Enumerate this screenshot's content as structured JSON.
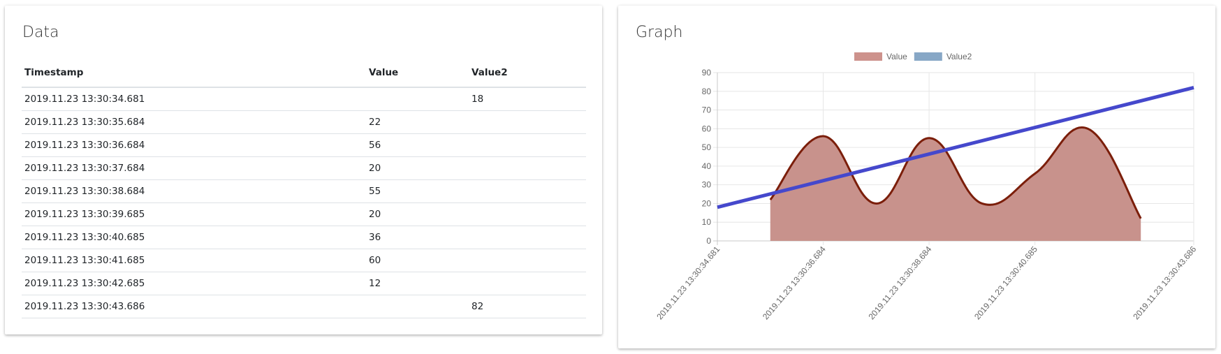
{
  "data_card": {
    "title": "Data",
    "columns": [
      "Timestamp",
      "Value",
      "Value2"
    ],
    "rows": [
      {
        "timestamp": "2019.11.23 13:30:34.681",
        "value": "",
        "value2": "18"
      },
      {
        "timestamp": "2019.11.23 13:30:35.684",
        "value": "22",
        "value2": ""
      },
      {
        "timestamp": "2019.11.23 13:30:36.684",
        "value": "56",
        "value2": ""
      },
      {
        "timestamp": "2019.11.23 13:30:37.684",
        "value": "20",
        "value2": ""
      },
      {
        "timestamp": "2019.11.23 13:30:38.684",
        "value": "55",
        "value2": ""
      },
      {
        "timestamp": "2019.11.23 13:30:39.685",
        "value": "20",
        "value2": ""
      },
      {
        "timestamp": "2019.11.23 13:30:40.685",
        "value": "36",
        "value2": ""
      },
      {
        "timestamp": "2019.11.23 13:30:41.685",
        "value": "60",
        "value2": ""
      },
      {
        "timestamp": "2019.11.23 13:30:42.685",
        "value": "12",
        "value2": ""
      },
      {
        "timestamp": "2019.11.23 13:30:43.686",
        "value": "",
        "value2": "82"
      }
    ]
  },
  "graph_card": {
    "title": "Graph"
  },
  "chart_data": {
    "type": "line",
    "title": "",
    "xlabel": "",
    "ylabel": "",
    "x": [
      "2019.11.23 13:30:34.681",
      "2019.11.23 13:30:35.684",
      "2019.11.23 13:30:36.684",
      "2019.11.23 13:30:37.684",
      "2019.11.23 13:30:38.684",
      "2019.11.23 13:30:39.685",
      "2019.11.23 13:30:40.685",
      "2019.11.23 13:30:41.685",
      "2019.11.23 13:30:42.685",
      "2019.11.23 13:30:43.686"
    ],
    "x_tick_labels": [
      "2019.11.23 13:30:34.681",
      "2019.11.23 13:30:36.684",
      "2019.11.23 13:30:38.684",
      "2019.11.23 13:30:40.685",
      "2019.11.23 13:30:43.686"
    ],
    "series": [
      {
        "name": "Value",
        "style": "area",
        "values": [
          null,
          22,
          56,
          20,
          55,
          20,
          36,
          60,
          12,
          null
        ],
        "line_color": "#7b1e0a",
        "fill_color": "#c8928c",
        "legend_color": "#cd928c"
      },
      {
        "name": "Value2",
        "style": "line",
        "values": [
          18,
          null,
          null,
          null,
          null,
          null,
          null,
          null,
          null,
          82
        ],
        "span_gaps": true,
        "line_color": "#4548cc",
        "legend_color": "#87a7c6"
      }
    ],
    "ylim": [
      0,
      90
    ],
    "y_ticks": [
      0,
      10,
      20,
      30,
      40,
      50,
      60,
      70,
      80,
      90
    ],
    "grid": true,
    "legend_position": "top"
  }
}
